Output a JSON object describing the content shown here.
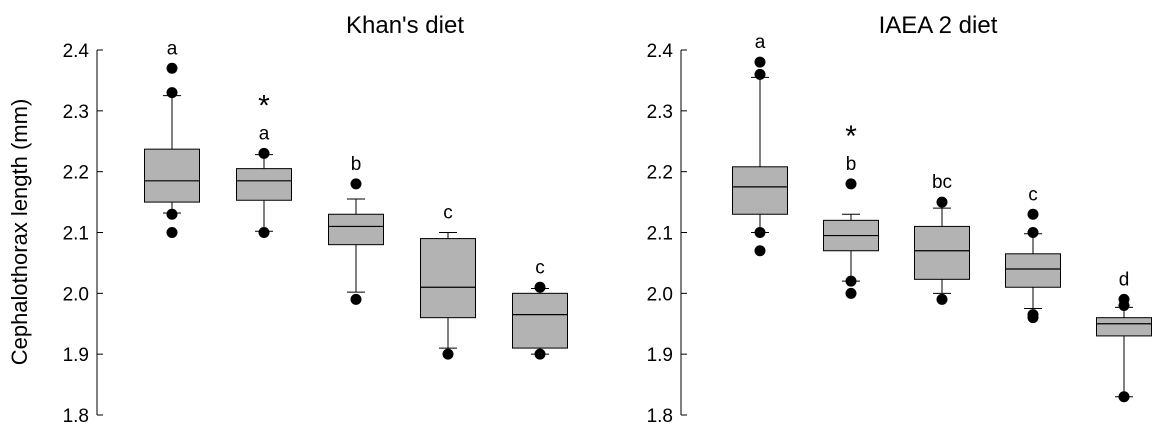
{
  "ylabel": "Cephalothorax length (mm)",
  "colors": {
    "box_fill": "#b3b3b3",
    "stroke": "#000000",
    "outlier": "#000000"
  },
  "chart_data": [
    {
      "type": "box",
      "title": "Khan's diet",
      "ylabel": "Cephalothorax length (mm)",
      "ylim": [
        1.8,
        2.4
      ],
      "yticks": [
        1.8,
        1.9,
        2.0,
        2.1,
        2.2,
        2.3,
        2.4
      ],
      "boxes": [
        {
          "letter": "a",
          "star": false,
          "whisker_low": 2.132,
          "q1": 2.15,
          "median": 2.185,
          "q3": 2.237,
          "whisker_high": 2.325,
          "outliers": [
            2.1,
            2.13,
            2.33,
            2.37
          ]
        },
        {
          "letter": "a",
          "star": true,
          "whisker_low": 2.102,
          "q1": 2.153,
          "median": 2.185,
          "q3": 2.205,
          "whisker_high": 2.228,
          "outliers": [
            2.1,
            2.23
          ]
        },
        {
          "letter": "b",
          "star": false,
          "whisker_low": 2.002,
          "q1": 2.08,
          "median": 2.11,
          "q3": 2.13,
          "whisker_high": 2.155,
          "outliers": [
            1.99,
            2.18
          ]
        },
        {
          "letter": "c",
          "star": false,
          "whisker_low": 1.91,
          "q1": 1.96,
          "median": 2.01,
          "q3": 2.09,
          "whisker_high": 2.1,
          "outliers": [
            1.9
          ]
        },
        {
          "letter": "c",
          "star": false,
          "whisker_low": 1.9,
          "q1": 1.91,
          "median": 1.965,
          "q3": 2.0,
          "whisker_high": 2.008,
          "outliers": [
            1.9,
            2.01
          ]
        }
      ]
    },
    {
      "type": "box",
      "title": "IAEA 2 diet",
      "ylabel": "",
      "ylim": [
        1.8,
        2.4
      ],
      "yticks": [
        1.8,
        1.9,
        2.0,
        2.1,
        2.2,
        2.3,
        2.4
      ],
      "boxes": [
        {
          "letter": "a",
          "star": false,
          "whisker_low": 2.1,
          "q1": 2.13,
          "median": 2.175,
          "q3": 2.208,
          "whisker_high": 2.355,
          "outliers": [
            2.07,
            2.1,
            2.36,
            2.38
          ]
        },
        {
          "letter": "b",
          "star": true,
          "whisker_low": 2.02,
          "q1": 2.07,
          "median": 2.095,
          "q3": 2.12,
          "whisker_high": 2.13,
          "outliers": [
            2.0,
            2.02,
            2.18
          ]
        },
        {
          "letter": "bc",
          "star": false,
          "whisker_low": 2.0,
          "q1": 2.023,
          "median": 2.07,
          "q3": 2.11,
          "whisker_high": 2.14,
          "outliers": [
            1.99,
            2.15
          ]
        },
        {
          "letter": "c",
          "star": false,
          "whisker_low": 1.975,
          "q1": 2.01,
          "median": 2.04,
          "q3": 2.065,
          "whisker_high": 2.098,
          "outliers": [
            1.96,
            1.965,
            2.1,
            2.13
          ]
        },
        {
          "letter": "d",
          "star": false,
          "whisker_low": 1.83,
          "q1": 1.93,
          "median": 1.95,
          "q3": 1.96,
          "whisker_high": 1.977,
          "outliers": [
            1.83,
            1.98,
            1.99
          ]
        }
      ]
    }
  ]
}
